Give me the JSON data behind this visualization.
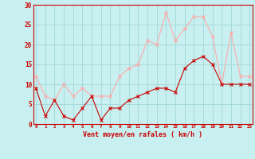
{
  "x": [
    0,
    1,
    2,
    3,
    4,
    5,
    6,
    7,
    8,
    9,
    10,
    11,
    12,
    13,
    14,
    15,
    16,
    17,
    18,
    19,
    20,
    21,
    22,
    23
  ],
  "wind_avg": [
    9,
    2,
    6,
    2,
    1,
    4,
    7,
    1,
    4,
    4,
    6,
    7,
    8,
    9,
    9,
    8,
    14,
    16,
    17,
    15,
    10,
    10,
    10,
    10
  ],
  "wind_gust": [
    12,
    7,
    6,
    10,
    7,
    9,
    7,
    7,
    7,
    12,
    14,
    15,
    21,
    20,
    28,
    21,
    24,
    27,
    27,
    22,
    10,
    23,
    12,
    12
  ],
  "avg_color": "#cc0000",
  "gust_color": "#ffaaaa",
  "bg_color": "#c8f0f0",
  "grid_color": "#a0d8d8",
  "xlabel": "Vent moyen/en rafales ( km/h )",
  "xlabel_color": "#cc0000",
  "ylim": [
    0,
    30
  ],
  "yticks": [
    0,
    5,
    10,
    15,
    20,
    25,
    30
  ],
  "xticks": [
    0,
    1,
    2,
    3,
    4,
    5,
    6,
    7,
    8,
    9,
    10,
    11,
    12,
    13,
    14,
    15,
    16,
    17,
    18,
    19,
    20,
    21,
    22,
    23
  ]
}
